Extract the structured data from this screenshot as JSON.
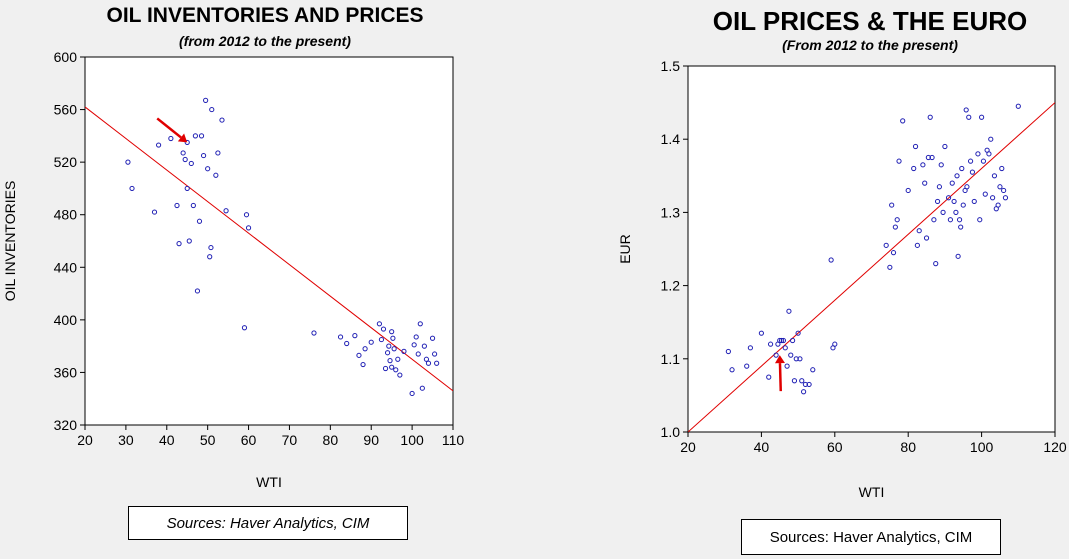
{
  "chart_data": [
    {
      "type": "scatter",
      "title": "OIL INVENTORIES AND PRICES",
      "subtitle": "(from 2012 to the present)",
      "xlabel": "WTI",
      "ylabel": "OIL INVENTORIES",
      "xlim": [
        20,
        110
      ],
      "ylim": [
        320,
        600
      ],
      "xticks": [
        20,
        30,
        40,
        50,
        60,
        70,
        80,
        90,
        100,
        110
      ],
      "yticks": [
        320,
        360,
        400,
        440,
        480,
        520,
        560,
        600
      ],
      "grid": false,
      "trendline": {
        "x": [
          20,
          110
        ],
        "y": [
          562,
          346
        ]
      },
      "annotation": {
        "type": "arrow",
        "points_to": {
          "x": 45,
          "y": 535
        },
        "color": "#e00000"
      },
      "points": [
        {
          "x": 30.5,
          "y": 520
        },
        {
          "x": 31.5,
          "y": 500
        },
        {
          "x": 37,
          "y": 482
        },
        {
          "x": 38,
          "y": 533
        },
        {
          "x": 41,
          "y": 538
        },
        {
          "x": 42.5,
          "y": 487
        },
        {
          "x": 43,
          "y": 458
        },
        {
          "x": 44,
          "y": 527
        },
        {
          "x": 44.5,
          "y": 522
        },
        {
          "x": 45,
          "y": 535
        },
        {
          "x": 45,
          "y": 500
        },
        {
          "x": 45.5,
          "y": 460
        },
        {
          "x": 46,
          "y": 519
        },
        {
          "x": 46.5,
          "y": 487
        },
        {
          "x": 47,
          "y": 540
        },
        {
          "x": 47.5,
          "y": 422
        },
        {
          "x": 48,
          "y": 475
        },
        {
          "x": 48.5,
          "y": 540
        },
        {
          "x": 49,
          "y": 525
        },
        {
          "x": 49.5,
          "y": 567
        },
        {
          "x": 50,
          "y": 515
        },
        {
          "x": 50.5,
          "y": 448
        },
        {
          "x": 50.8,
          "y": 455
        },
        {
          "x": 51,
          "y": 560
        },
        {
          "x": 52,
          "y": 510
        },
        {
          "x": 52.5,
          "y": 527
        },
        {
          "x": 53.5,
          "y": 552
        },
        {
          "x": 54.5,
          "y": 483
        },
        {
          "x": 59.5,
          "y": 480
        },
        {
          "x": 59,
          "y": 394
        },
        {
          "x": 60,
          "y": 470
        },
        {
          "x": 76,
          "y": 390
        },
        {
          "x": 82.5,
          "y": 387
        },
        {
          "x": 84,
          "y": 382
        },
        {
          "x": 86,
          "y": 388
        },
        {
          "x": 87,
          "y": 373
        },
        {
          "x": 88,
          "y": 366
        },
        {
          "x": 88.5,
          "y": 378
        },
        {
          "x": 90,
          "y": 383
        },
        {
          "x": 92,
          "y": 397
        },
        {
          "x": 92.5,
          "y": 385
        },
        {
          "x": 93,
          "y": 393
        },
        {
          "x": 93.5,
          "y": 363
        },
        {
          "x": 94,
          "y": 375
        },
        {
          "x": 94.3,
          "y": 380
        },
        {
          "x": 94.6,
          "y": 369
        },
        {
          "x": 95,
          "y": 391
        },
        {
          "x": 95,
          "y": 364
        },
        {
          "x": 95.3,
          "y": 386
        },
        {
          "x": 95.6,
          "y": 378
        },
        {
          "x": 96,
          "y": 362
        },
        {
          "x": 96.5,
          "y": 370
        },
        {
          "x": 97,
          "y": 358
        },
        {
          "x": 98,
          "y": 376
        },
        {
          "x": 100,
          "y": 344
        },
        {
          "x": 100.5,
          "y": 381
        },
        {
          "x": 101,
          "y": 387
        },
        {
          "x": 101.5,
          "y": 374
        },
        {
          "x": 102,
          "y": 397
        },
        {
          "x": 102.5,
          "y": 348
        },
        {
          "x": 103,
          "y": 380
        },
        {
          "x": 103.5,
          "y": 370
        },
        {
          "x": 104,
          "y": 367
        },
        {
          "x": 105,
          "y": 386
        },
        {
          "x": 105.5,
          "y": 374
        },
        {
          "x": 106,
          "y": 367
        }
      ],
      "source_label": "Sources:  Haver Analytics, CIM"
    },
    {
      "type": "scatter",
      "title": "OIL PRICES & THE EURO",
      "subtitle": "(From 2012 to the present)",
      "xlabel": "WTI",
      "ylabel": "EUR",
      "xlim": [
        20,
        120
      ],
      "ylim": [
        1.0,
        1.5
      ],
      "xticks": [
        20,
        40,
        60,
        80,
        100,
        120
      ],
      "yticks": [
        "1.0",
        "1.1",
        "1.2",
        "1.3",
        "1.4",
        "1.5"
      ],
      "grid": false,
      "trendline": {
        "x": [
          20,
          120
        ],
        "y": [
          1.0,
          1.45
        ]
      },
      "annotation": {
        "type": "arrow",
        "points_to": {
          "x": 45,
          "y": 1.105
        },
        "color": "#e00000"
      },
      "points": [
        {
          "x": 31,
          "y": 1.11
        },
        {
          "x": 32,
          "y": 1.085
        },
        {
          "x": 36,
          "y": 1.09
        },
        {
          "x": 37,
          "y": 1.115
        },
        {
          "x": 40,
          "y": 1.135
        },
        {
          "x": 42,
          "y": 1.075
        },
        {
          "x": 42.5,
          "y": 1.12
        },
        {
          "x": 44,
          "y": 1.105
        },
        {
          "x": 44.5,
          "y": 1.12
        },
        {
          "x": 45,
          "y": 1.125
        },
        {
          "x": 45.5,
          "y": 1.125
        },
        {
          "x": 46,
          "y": 1.125
        },
        {
          "x": 46.5,
          "y": 1.115
        },
        {
          "x": 47,
          "y": 1.09
        },
        {
          "x": 47.5,
          "y": 1.165
        },
        {
          "x": 48,
          "y": 1.105
        },
        {
          "x": 48.5,
          "y": 1.125
        },
        {
          "x": 49,
          "y": 1.07
        },
        {
          "x": 49.5,
          "y": 1.1
        },
        {
          "x": 50,
          "y": 1.135
        },
        {
          "x": 50.5,
          "y": 1.1
        },
        {
          "x": 51,
          "y": 1.07
        },
        {
          "x": 51.5,
          "y": 1.055
        },
        {
          "x": 52,
          "y": 1.065
        },
        {
          "x": 53,
          "y": 1.065
        },
        {
          "x": 54,
          "y": 1.085
        },
        {
          "x": 59,
          "y": 1.235
        },
        {
          "x": 59.5,
          "y": 1.115
        },
        {
          "x": 60,
          "y": 1.12
        },
        {
          "x": 74,
          "y": 1.255
        },
        {
          "x": 75,
          "y": 1.225
        },
        {
          "x": 75.5,
          "y": 1.31
        },
        {
          "x": 76,
          "y": 1.245
        },
        {
          "x": 76.5,
          "y": 1.28
        },
        {
          "x": 77,
          "y": 1.29
        },
        {
          "x": 77.5,
          "y": 1.37
        },
        {
          "x": 78.5,
          "y": 1.425
        },
        {
          "x": 80,
          "y": 1.33
        },
        {
          "x": 81.5,
          "y": 1.36
        },
        {
          "x": 82,
          "y": 1.39
        },
        {
          "x": 82.5,
          "y": 1.255
        },
        {
          "x": 83,
          "y": 1.275
        },
        {
          "x": 84,
          "y": 1.365
        },
        {
          "x": 84.5,
          "y": 1.34
        },
        {
          "x": 85,
          "y": 1.265
        },
        {
          "x": 85.5,
          "y": 1.375
        },
        {
          "x": 86,
          "y": 1.43
        },
        {
          "x": 86.5,
          "y": 1.375
        },
        {
          "x": 87,
          "y": 1.29
        },
        {
          "x": 87.5,
          "y": 1.23
        },
        {
          "x": 88,
          "y": 1.315
        },
        {
          "x": 88.5,
          "y": 1.335
        },
        {
          "x": 89,
          "y": 1.365
        },
        {
          "x": 89.5,
          "y": 1.3
        },
        {
          "x": 90,
          "y": 1.39
        },
        {
          "x": 91,
          "y": 1.32
        },
        {
          "x": 91.5,
          "y": 1.29
        },
        {
          "x": 92,
          "y": 1.34
        },
        {
          "x": 92.5,
          "y": 1.315
        },
        {
          "x": 93,
          "y": 1.3
        },
        {
          "x": 93.3,
          "y": 1.35
        },
        {
          "x": 93.6,
          "y": 1.24
        },
        {
          "x": 94,
          "y": 1.29
        },
        {
          "x": 94.3,
          "y": 1.28
        },
        {
          "x": 94.6,
          "y": 1.36
        },
        {
          "x": 95,
          "y": 1.31
        },
        {
          "x": 95.5,
          "y": 1.33
        },
        {
          "x": 95.8,
          "y": 1.44
        },
        {
          "x": 96,
          "y": 1.335
        },
        {
          "x": 96.5,
          "y": 1.43
        },
        {
          "x": 97,
          "y": 1.37
        },
        {
          "x": 97.5,
          "y": 1.355
        },
        {
          "x": 98,
          "y": 1.315
        },
        {
          "x": 99,
          "y": 1.38
        },
        {
          "x": 99.5,
          "y": 1.29
        },
        {
          "x": 100,
          "y": 1.43
        },
        {
          "x": 100.5,
          "y": 1.37
        },
        {
          "x": 101,
          "y": 1.325
        },
        {
          "x": 101.5,
          "y": 1.385
        },
        {
          "x": 102,
          "y": 1.38
        },
        {
          "x": 102.5,
          "y": 1.4
        },
        {
          "x": 103,
          "y": 1.32
        },
        {
          "x": 103.5,
          "y": 1.35
        },
        {
          "x": 104,
          "y": 1.305
        },
        {
          "x": 104.5,
          "y": 1.31
        },
        {
          "x": 105,
          "y": 1.335
        },
        {
          "x": 105.5,
          "y": 1.36
        },
        {
          "x": 106,
          "y": 1.33
        },
        {
          "x": 106.5,
          "y": 1.32
        },
        {
          "x": 110,
          "y": 1.445
        }
      ],
      "source_label": "Sources:  Haver Analytics, CIM"
    }
  ],
  "colors": {
    "marker": "#1f1fb4",
    "trendline": "#e00000",
    "arrow": "#e00000",
    "axis": "#000000",
    "plot_bg": "#ffffff",
    "page_bg": "#f0f0f0"
  }
}
